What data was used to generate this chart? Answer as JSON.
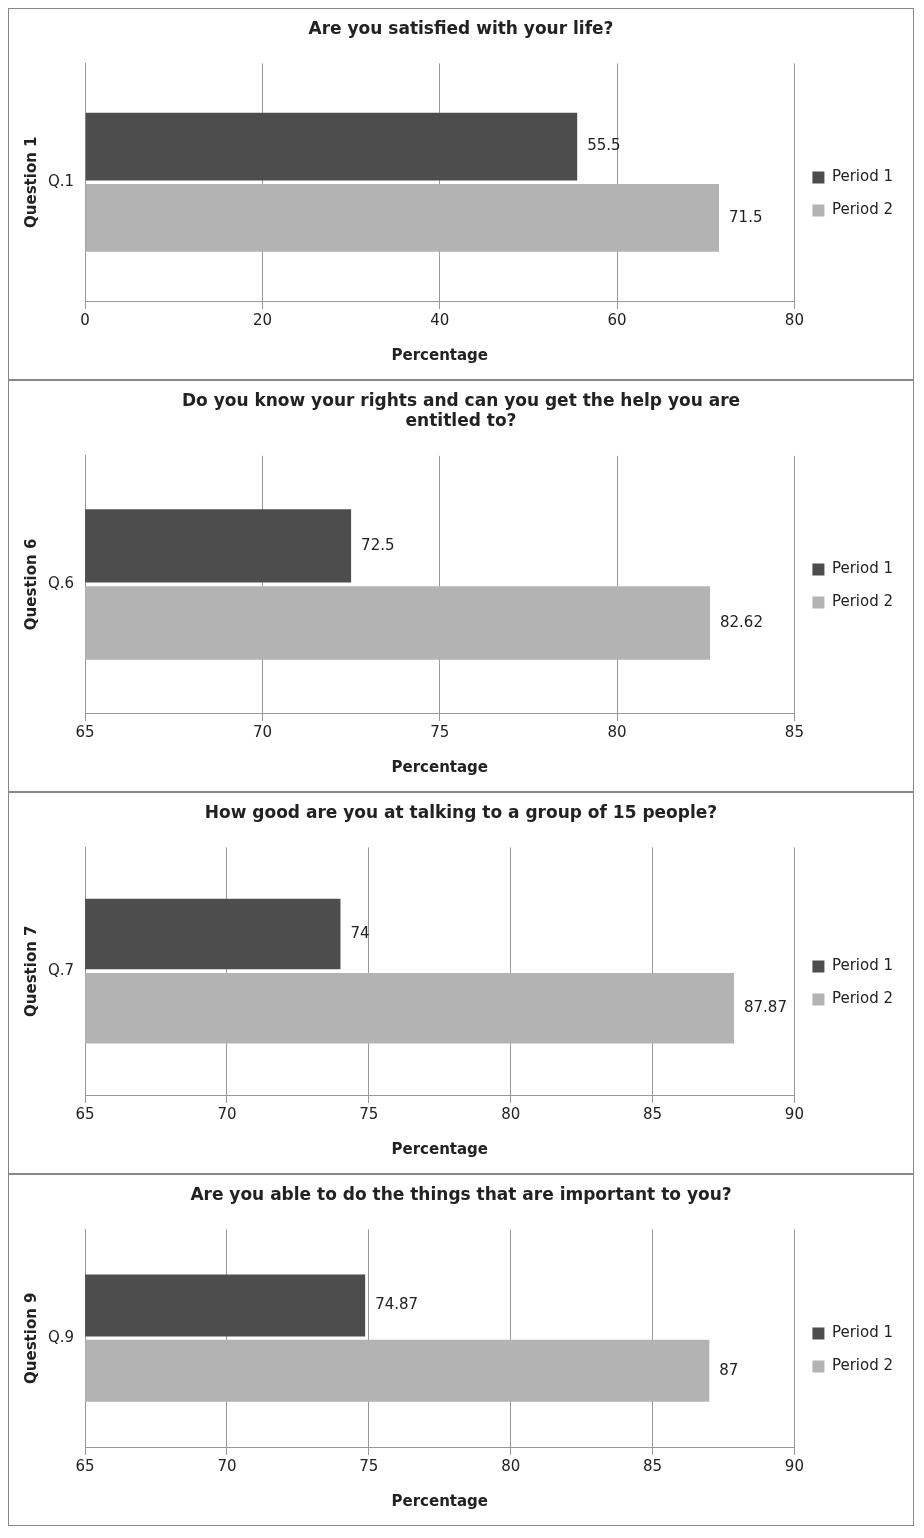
{
  "chart_data": [
    {
      "type": "bar",
      "orientation": "horizontal",
      "title": "Are you satisfied with your life?",
      "xlabel": "Percentage",
      "ylabel": "Question 1",
      "categories": [
        "Q.1"
      ],
      "series": [
        {
          "name": "Period 1",
          "color": "#4d4d4d",
          "values": [
            55.5
          ]
        },
        {
          "name": "Period 2",
          "color": "#b3b3b3",
          "values": [
            71.5
          ]
        }
      ],
      "xlim": [
        0,
        80
      ],
      "xticks": [
        0,
        20,
        40,
        60,
        80
      ],
      "grid": "x",
      "legend": "right",
      "data_labels": true
    },
    {
      "type": "bar",
      "orientation": "horizontal",
      "title": "Do you know your rights and can you get the help you are entitled to?",
      "xlabel": "Percentage",
      "ylabel": "Question 6",
      "categories": [
        "Q.6"
      ],
      "series": [
        {
          "name": "Period 1",
          "color": "#4d4d4d",
          "values": [
            72.5
          ]
        },
        {
          "name": "Period 2",
          "color": "#b3b3b3",
          "values": [
            82.62
          ]
        }
      ],
      "xlim": [
        65,
        85
      ],
      "xticks": [
        65,
        70,
        75,
        80,
        85
      ],
      "grid": "x",
      "legend": "right",
      "data_labels": true
    },
    {
      "type": "bar",
      "orientation": "horizontal",
      "title": "How good are you at talking to a group of 15 people?",
      "xlabel": "Percentage",
      "ylabel": "Question 7",
      "categories": [
        "Q.7"
      ],
      "series": [
        {
          "name": "Period 1",
          "color": "#4d4d4d",
          "values": [
            74
          ]
        },
        {
          "name": "Period 2",
          "color": "#b3b3b3",
          "values": [
            87.87
          ]
        }
      ],
      "xlim": [
        65,
        90
      ],
      "xticks": [
        65,
        70,
        75,
        80,
        85,
        90
      ],
      "grid": "x",
      "legend": "right",
      "data_labels": true
    },
    {
      "type": "bar",
      "orientation": "horizontal",
      "title": "Are you able to do the things that are important to you?",
      "xlabel": "Percentage",
      "ylabel": "Question 9",
      "categories": [
        "Q.9"
      ],
      "series": [
        {
          "name": "Period 1",
          "color": "#4d4d4d",
          "values": [
            74.87
          ]
        },
        {
          "name": "Period 2",
          "color": "#b3b3b3",
          "values": [
            87
          ]
        }
      ],
      "xlim": [
        65,
        90
      ],
      "xticks": [
        65,
        70,
        75,
        80,
        85,
        90
      ],
      "grid": "x",
      "legend": "right",
      "data_labels": true
    }
  ]
}
